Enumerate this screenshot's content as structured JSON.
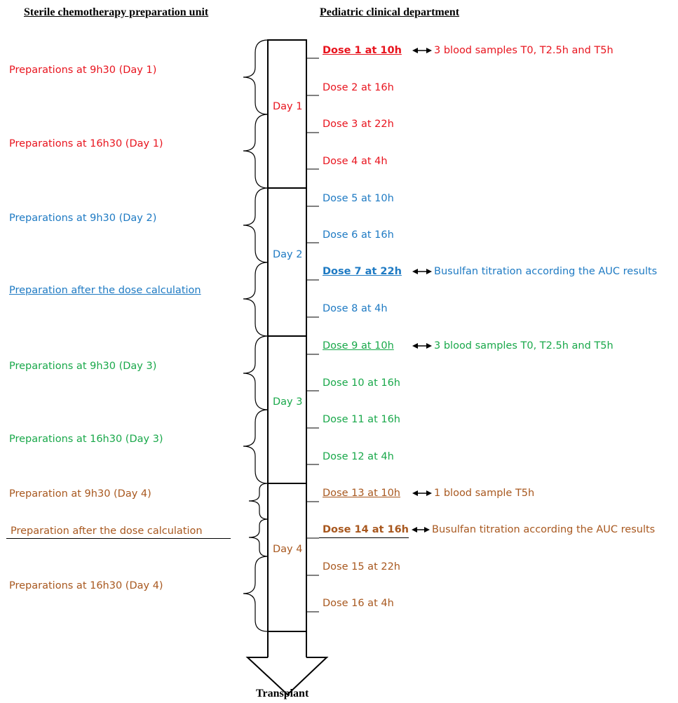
{
  "headers": {
    "left": "Sterile chemotherapy preparation unit",
    "right": "Pediatric clinical department",
    "bottom": "Transplant"
  },
  "colors": {
    "day1": "#e8141e",
    "day2": "#1e7ac3",
    "day3": "#19a84a",
    "day4": "#a8581f"
  },
  "days": [
    "Day 1",
    "Day 2",
    "Day 3",
    "Day 4"
  ],
  "preparations": [
    "Preparations at 9h30 (Day 1)",
    "Preparations at 16h30 (Day 1)",
    "Preparations at 9h30 (Day 2)",
    "Preparation after the dose calculation",
    "Preparations at 9h30 (Day 3)",
    "Preparations at 16h30 (Day 3)",
    "Preparation at 9h30 (Day 4)",
    "Preparation after the dose calculation",
    "Preparations at 16h30 (Day 4)"
  ],
  "doses": [
    "Dose 1 at 10h",
    "Dose 2 at 16h",
    "Dose 3 at 22h",
    "Dose 4 at 4h",
    "Dose 5 at 10h",
    "Dose 6 at 16h",
    "Dose 7 at 22h",
    "Dose 8 at 4h",
    "Dose 9 at 10h",
    "Dose 10 at 16h",
    "Dose 11 at 16h",
    "Dose 12 at 4h",
    "Dose 13 at 10h",
    "Dose 14 at 16h",
    "Dose 15 at 22h",
    "Dose 16 at 4h"
  ],
  "notes": [
    "3 blood samples T0, T2.5h and T5h",
    "Busulfan titration according the AUC results",
    "3 blood samples T0, T2.5h and T5h",
    "1 blood sample T5h",
    "Busulfan titration according the AUC results"
  ]
}
